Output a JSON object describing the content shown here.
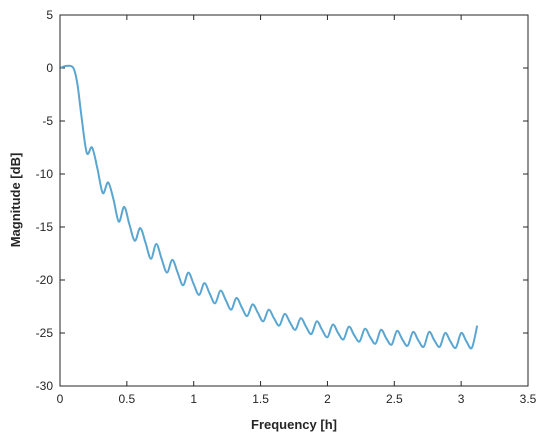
{
  "chart_data": {
    "type": "line",
    "xlabel": "Frequency [h]",
    "ylabel": "Magnitude [dB]",
    "xlim": [
      0,
      3.5
    ],
    "ylim": [
      -30,
      5
    ],
    "xticks": [
      0,
      0.5,
      1,
      1.5,
      2,
      2.5,
      3,
      3.5
    ],
    "xtick_labels": [
      "0",
      "0.5",
      "1",
      "1.5",
      "2",
      "2.5",
      "3",
      "3.5"
    ],
    "yticks": [
      5,
      0,
      -5,
      -10,
      -15,
      -20,
      -25,
      -30
    ],
    "ytick_labels": [
      "5",
      "0",
      "-5",
      "-10",
      "-15",
      "-20",
      "-25",
      "-30"
    ],
    "grid": false,
    "box": true,
    "series": [
      {
        "color": "#5aa6d0",
        "x": [
          0,
          0.05,
          0.1,
          0.13,
          0.16,
          0.2,
          0.24,
          0.28,
          0.32,
          0.36,
          0.4,
          0.44,
          0.48,
          0.52,
          0.56,
          0.6,
          0.64,
          0.68,
          0.72,
          0.76,
          0.8,
          0.84,
          0.88,
          0.92,
          0.96,
          1.0,
          1.04,
          1.08,
          1.12,
          1.16,
          1.2,
          1.24,
          1.28,
          1.32,
          1.36,
          1.4,
          1.44,
          1.48,
          1.52,
          1.56,
          1.6,
          1.64,
          1.68,
          1.72,
          1.76,
          1.8,
          1.84,
          1.88,
          1.92,
          1.96,
          2.0,
          2.04,
          2.08,
          2.12,
          2.16,
          2.2,
          2.24,
          2.28,
          2.32,
          2.36,
          2.4,
          2.44,
          2.48,
          2.52,
          2.56,
          2.6,
          2.64,
          2.68,
          2.72,
          2.76,
          2.8,
          2.84,
          2.88,
          2.92,
          2.96,
          3.0,
          3.04,
          3.08,
          3.12
        ],
        "y": [
          0,
          0.2,
          0,
          -1.5,
          -4.5,
          -8,
          -7.5,
          -9.5,
          -11.8,
          -10.8,
          -12.4,
          -14.5,
          -13.1,
          -14.8,
          -16.3,
          -15.1,
          -16.5,
          -18,
          -16.6,
          -18,
          -19.3,
          -18.1,
          -19.3,
          -20.5,
          -19.3,
          -20.4,
          -21.4,
          -20.3,
          -21.3,
          -22.2,
          -21.0,
          -21.9,
          -22.8,
          -21.7,
          -22.6,
          -23.4,
          -22.3,
          -23.1,
          -23.9,
          -22.8,
          -23.6,
          -24.3,
          -23.2,
          -24.0,
          -24.7,
          -23.6,
          -24.4,
          -25.1,
          -23.9,
          -24.7,
          -25.4,
          -24.2,
          -25.0,
          -25.6,
          -24.4,
          -25.2,
          -25.8,
          -24.6,
          -25.4,
          -26.0,
          -24.7,
          -25.5,
          -26.1,
          -24.8,
          -25.6,
          -26.2,
          -24.9,
          -25.7,
          -26.3,
          -24.9,
          -25.7,
          -26.3,
          -25.0,
          -25.8,
          -26.4,
          -25.0,
          -25.8,
          -26.4,
          -24.3
        ]
      }
    ]
  }
}
